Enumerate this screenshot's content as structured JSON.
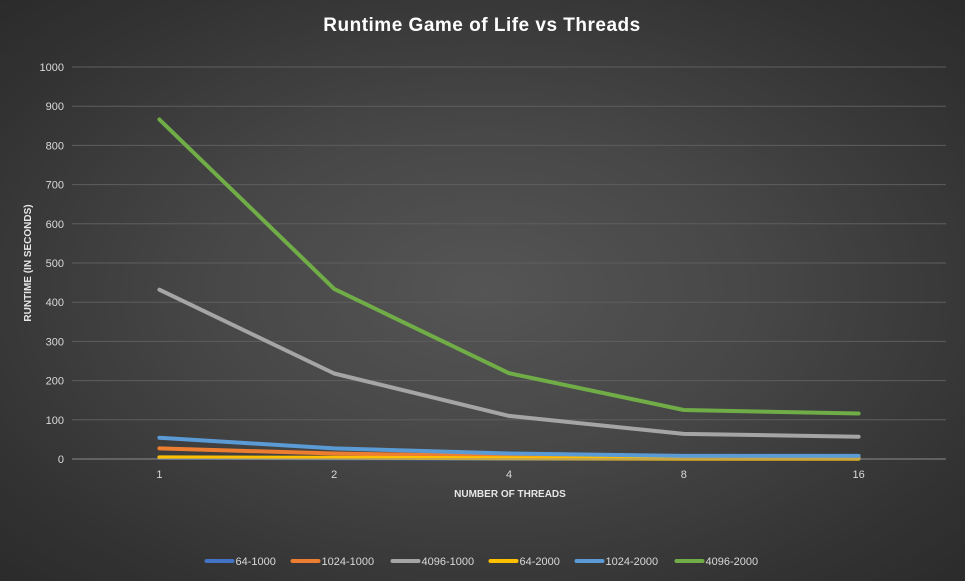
{
  "chart_data": {
    "type": "line",
    "title": "Runtime  Game  of  Life  vs  Threads",
    "xlabel": "NUMBER OF THREADS",
    "ylabel": "RUNTIME (IN SECONDS)",
    "categories": [
      "1",
      "2",
      "4",
      "8",
      "16"
    ],
    "ylim": [
      0,
      1000
    ],
    "yticks": [
      0,
      100,
      200,
      300,
      400,
      500,
      600,
      700,
      800,
      900,
      1000
    ],
    "grid": true,
    "legend_position": "bottom",
    "series": [
      {
        "name": "64-1000",
        "color": "#4472c4",
        "values": [
          3,
          2,
          1,
          1,
          1
        ]
      },
      {
        "name": "1024-1000",
        "color": "#ed7d31",
        "values": [
          27,
          14,
          7,
          4,
          4
        ]
      },
      {
        "name": "4096-1000",
        "color": "#a5a5a5",
        "values": [
          432,
          218,
          110,
          64,
          57
        ]
      },
      {
        "name": "64-2000",
        "color": "#ffc000",
        "values": [
          4,
          3,
          2,
          1,
          1
        ]
      },
      {
        "name": "1024-2000",
        "color": "#5b9bd5",
        "values": [
          54,
          27,
          14,
          8,
          8
        ]
      },
      {
        "name": "4096-2000",
        "color": "#70ad47",
        "values": [
          866,
          434,
          219,
          125,
          116
        ]
      }
    ]
  }
}
